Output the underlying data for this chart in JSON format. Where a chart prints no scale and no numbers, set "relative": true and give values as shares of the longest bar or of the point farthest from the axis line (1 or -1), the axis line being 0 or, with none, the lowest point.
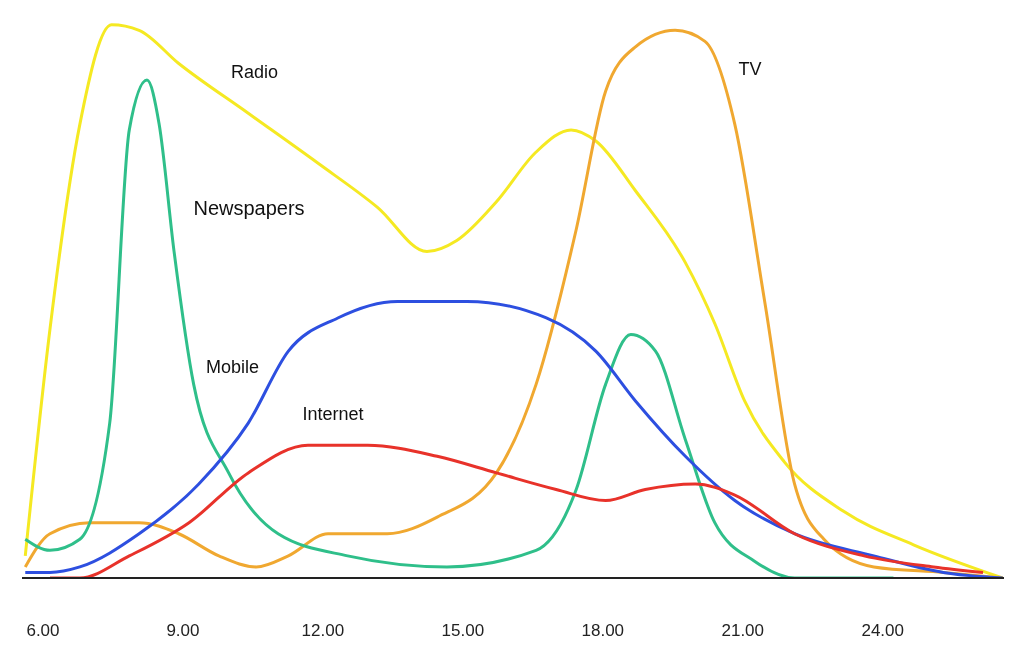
{
  "chart_data": {
    "type": "line",
    "relative": true,
    "grid": false,
    "legend": false,
    "marker": "none",
    "line_style": "solid",
    "xlim": [
      5.55,
      26.6
    ],
    "xticks": [
      {
        "value": 6,
        "label": "6.00"
      },
      {
        "value": 9,
        "label": "9.00"
      },
      {
        "value": 12,
        "label": "12.00"
      },
      {
        "value": 15,
        "label": "15.00"
      },
      {
        "value": 18,
        "label": "18.00"
      },
      {
        "value": 21,
        "label": "21.00"
      },
      {
        "value": 24,
        "label": "24.00"
      }
    ],
    "series": [
      {
        "name": "Radio",
        "color": "#f5e922",
        "x": [
          5.62,
          6.15,
          6.79,
          7.47,
          8.06,
          8.91,
          10.4,
          11.89,
          13.17,
          14.23,
          14.87,
          15.72,
          16.57,
          17.32,
          17.85,
          18.7,
          19.77,
          20.4,
          21.04,
          21.89,
          23.17,
          24.66,
          26.57
        ],
        "values": [
          0.04,
          0.45,
          0.82,
          1.0,
          0.99,
          0.93,
          0.84,
          0.75,
          0.67,
          0.59,
          0.61,
          0.68,
          0.77,
          0.81,
          0.79,
          0.7,
          0.57,
          0.46,
          0.32,
          0.21,
          0.12,
          0.06,
          0.0
        ]
      },
      {
        "name": "TV",
        "color": "#f0a830",
        "x": [
          5.62,
          6.15,
          7.0,
          8.06,
          8.91,
          9.77,
          10.57,
          11.26,
          12.11,
          13.38,
          14.45,
          15.72,
          16.57,
          17.43,
          18.06,
          18.7,
          19.55,
          20.19,
          20.83,
          21.47,
          22.11,
          22.74,
          23.81,
          25.3,
          26.57
        ],
        "values": [
          0.02,
          0.08,
          0.1,
          0.1,
          0.08,
          0.04,
          0.02,
          0.04,
          0.08,
          0.08,
          0.11,
          0.19,
          0.35,
          0.63,
          0.88,
          0.96,
          0.99,
          0.97,
          0.82,
          0.5,
          0.17,
          0.07,
          0.02,
          0.01,
          0
        ]
      },
      {
        "name": "Newspapers",
        "color": "#2fbf8a",
        "x": [
          5.62,
          6.15,
          6.79,
          7.43,
          7.85,
          8.23,
          8.49,
          8.81,
          9.23,
          9.98,
          11.04,
          12.53,
          14.66,
          16.57,
          17.43,
          18.06,
          18.6,
          19.13,
          19.77,
          20.4,
          21.26,
          22.11,
          24.23
        ],
        "values": [
          0.07,
          0.05,
          0.07,
          0.28,
          0.81,
          0.9,
          0.82,
          0.59,
          0.35,
          0.19,
          0.08,
          0.04,
          0.02,
          0.05,
          0.16,
          0.35,
          0.44,
          0.41,
          0.25,
          0.1,
          0.03,
          0.0,
          0
        ]
      },
      {
        "name": "Mobile",
        "color": "#2d4fe0",
        "x": [
          5.62,
          6.15,
          6.79,
          8.06,
          9.34,
          10.4,
          11.26,
          12.32,
          13.6,
          15.09,
          16.79,
          17.85,
          18.7,
          19.77,
          20.83,
          22.11,
          23.81,
          25.3,
          26.57
        ],
        "values": [
          0.01,
          0.01,
          0.02,
          0.08,
          0.17,
          0.28,
          0.41,
          0.47,
          0.5,
          0.5,
          0.47,
          0.41,
          0.32,
          0.22,
          0.14,
          0.08,
          0.04,
          0.01,
          0
        ]
      },
      {
        "name": "Internet",
        "color": "#e8322a",
        "x": [
          6.15,
          6.79,
          7.85,
          9.13,
          10.4,
          11.68,
          12.96,
          14.45,
          15.72,
          17.0,
          18.06,
          18.91,
          19.98,
          20.83,
          22.11,
          23.6,
          25.09,
          26.15
        ],
        "values": [
          0,
          0.0,
          0.04,
          0.1,
          0.19,
          0.24,
          0.24,
          0.22,
          0.19,
          0.16,
          0.14,
          0.16,
          0.17,
          0.15,
          0.08,
          0.04,
          0.02,
          0.01
        ]
      }
    ]
  }
}
